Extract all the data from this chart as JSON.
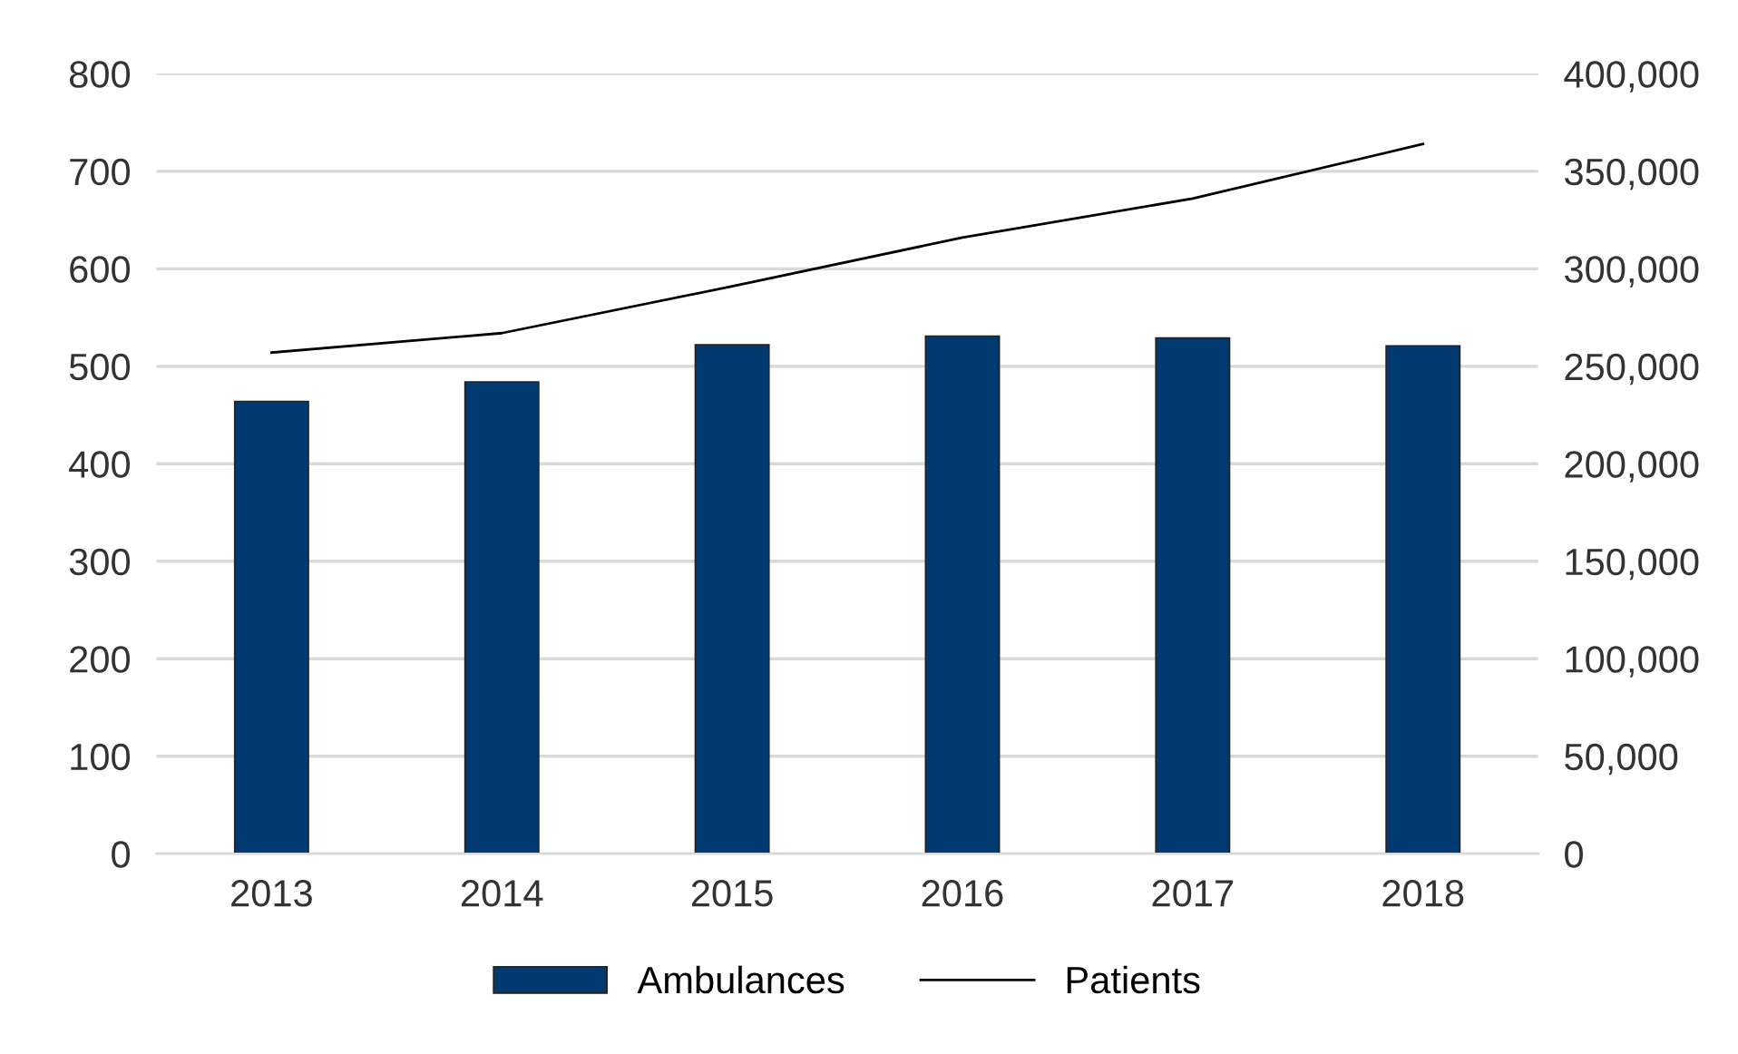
{
  "chart_data": {
    "type": "bar",
    "categories": [
      "2013",
      "2014",
      "2015",
      "2016",
      "2017",
      "2018"
    ],
    "series": [
      {
        "name": "Ambulances",
        "color": "#003a70",
        "values": [
          464,
          484,
          522,
          531,
          529,
          521
        ]
      },
      {
        "name": "Patients",
        "type": "line",
        "axis": "y2",
        "color": "#000000",
        "values": [
          257000,
          267000,
          291000,
          316000,
          336000,
          364000
        ]
      }
    ],
    "ylim": [
      0,
      800
    ],
    "yticks": [
      0,
      100,
      200,
      300,
      400,
      500,
      600,
      700,
      800
    ],
    "y2lim": [
      0,
      400000
    ],
    "y2ticks": [
      {
        "value": 0,
        "label": "0"
      },
      {
        "value": 50000,
        "label": "50,000"
      },
      {
        "value": 100000,
        "label": "100,000"
      },
      {
        "value": 150000,
        "label": "150,000"
      },
      {
        "value": 200000,
        "label": "200,000"
      },
      {
        "value": 250000,
        "label": "250,000"
      },
      {
        "value": 300000,
        "label": "300,000"
      },
      {
        "value": 350000,
        "label": "350,000"
      },
      {
        "value": 400000,
        "label": "400,000"
      }
    ],
    "grid": "y",
    "legend": "bottom",
    "marker": "none"
  }
}
